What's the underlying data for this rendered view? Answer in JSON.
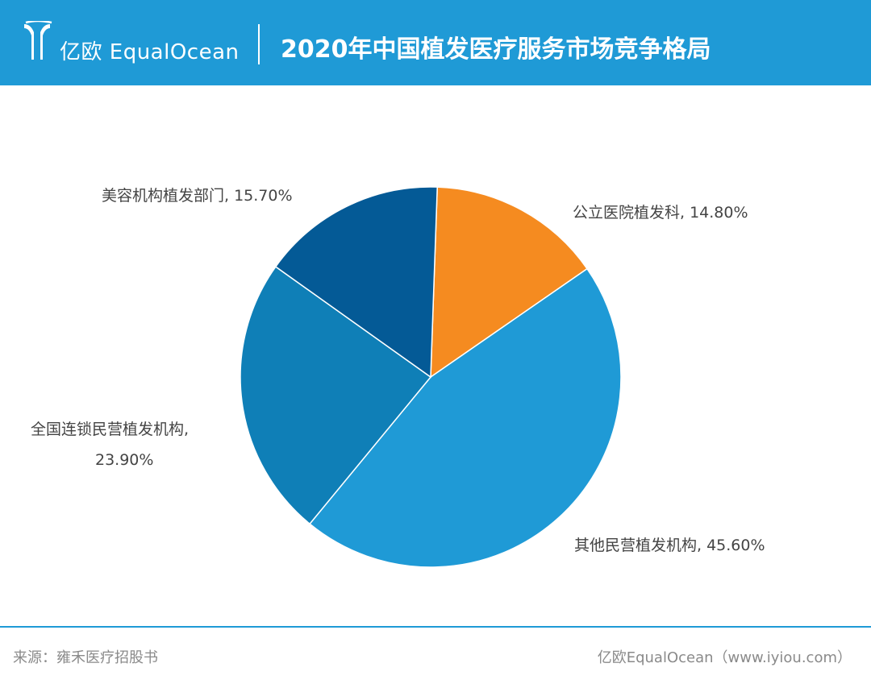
{
  "header": {
    "brand": "亿欧 EqualOcean",
    "title": "2020年中国植发医疗服务市场竞争格局"
  },
  "colors": {
    "header_bg": "#1f9ad6",
    "slice_public_hospital": "#f58b20",
    "slice_other_private": "#1f9ad6",
    "slice_chain_private": "#0f7fb7",
    "slice_beauty": "#045a96"
  },
  "chart_data": {
    "type": "pie",
    "title": "2020年中国植发医疗服务市场竞争格局",
    "slices": [
      {
        "label": "公立医院植发科",
        "value": 14.8,
        "text": "公立医院植发科, 14.80%",
        "color": "#f58b20"
      },
      {
        "label": "其他民营植发机构",
        "value": 45.6,
        "text": "其他民营植发机构, 45.60%",
        "color": "#1f9ad6"
      },
      {
        "label": "全国连锁民营植发机构",
        "value": 23.9,
        "text_line1": "全国连锁民营植发机构,",
        "text_line2": "23.90%",
        "color": "#0f7fb7"
      },
      {
        "label": "美容机构植发部门",
        "value": 15.7,
        "text": "美容机构植发部门, 15.70%",
        "color": "#045a96"
      }
    ]
  },
  "footer": {
    "source": "来源：雍禾医疗招股书",
    "credit": "亿欧EqualOcean（www.iyiou.com）"
  }
}
